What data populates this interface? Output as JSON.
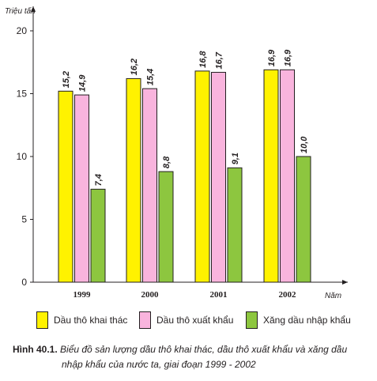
{
  "chart_data": {
    "type": "bar",
    "title": "",
    "ylabel": "Triệu tấn",
    "xlabel": "Năm",
    "ylim": [
      0,
      20
    ],
    "yticks": [
      "0",
      "5",
      "10",
      "15",
      "20"
    ],
    "categories": [
      "1999",
      "2000",
      "2001",
      "2002"
    ],
    "series": [
      {
        "name": "Dầu thô khai thác",
        "color": "#fff200",
        "values": [
          15.2,
          16.2,
          16.8,
          16.9
        ],
        "labels": [
          "15,2",
          "16,2",
          "16,8",
          "16,9"
        ]
      },
      {
        "name": "Dầu thô xuất khẩu",
        "color": "#f9b4dd",
        "values": [
          14.9,
          15.4,
          16.7,
          16.9
        ],
        "labels": [
          "14,9",
          "15,4",
          "16,7",
          "16,9"
        ]
      },
      {
        "name": "Xăng dầu nhập khẩu",
        "color": "#8dc63f",
        "values": [
          7.4,
          8.8,
          9.1,
          10.0
        ],
        "labels": [
          "7,4",
          "8,8",
          "9,1",
          "10,0"
        ]
      }
    ],
    "grid": false,
    "legend": "bottom"
  },
  "caption": {
    "figure": "Hình 40.1.",
    "line1": "Biểu đồ sản lượng dầu thô khai thác, dầu thô xuất khẩu và xăng dầu",
    "line2": "nhập khẩu của nước ta, giai đoạn 1999 - 2002"
  }
}
